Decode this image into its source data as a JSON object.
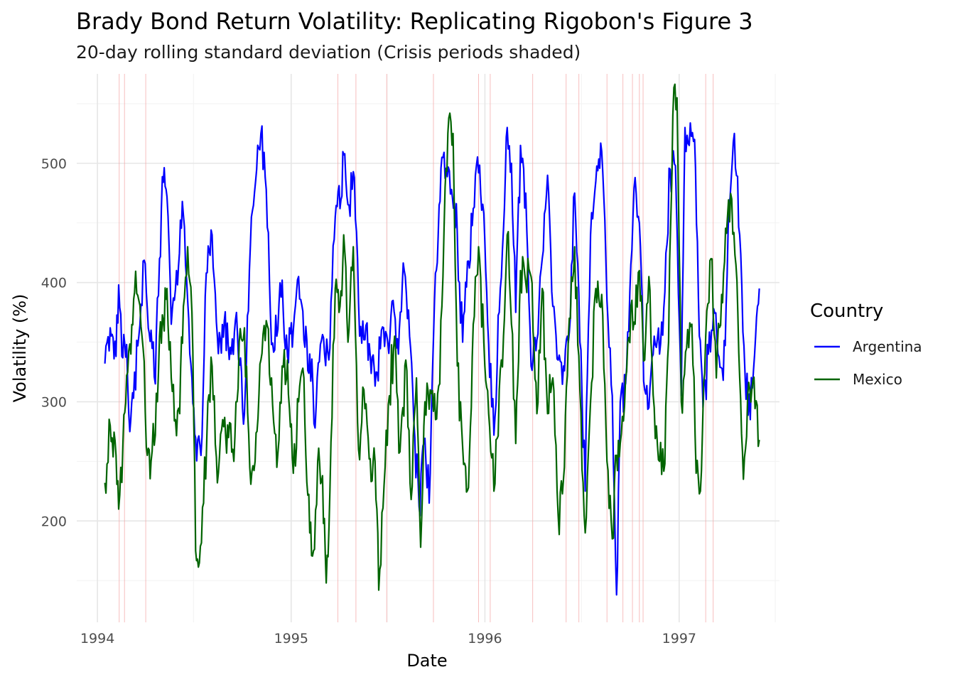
{
  "chart_data": {
    "type": "line",
    "title": "Brady Bond Return Volatility: Replicating Rigobon's Figure 3",
    "subtitle": "20-day rolling standard deviation (Crisis periods shaded)",
    "xlabel": "Date",
    "ylabel": "Volatility (%)",
    "x_range": [
      "1993-11-23",
      "1997-07-09"
    ],
    "y_range": [
      115,
      575
    ],
    "x_ticks": [
      "1994",
      "1995",
      "1996",
      "1997"
    ],
    "y_ticks": [
      200,
      300,
      400,
      500
    ],
    "grid": true,
    "legend": {
      "title": "Country",
      "placement": "right"
    },
    "crisis_color": "#f4a8a8",
    "crisis_dates": [
      "1994-02-11",
      "1994-02-21",
      "1994-04-02",
      "1995-03-30",
      "1995-05-03",
      "1995-06-30",
      "1995-09-26",
      "1995-12-20",
      "1996-01-11",
      "1996-03-31",
      "1996-06-02",
      "1996-06-26",
      "1996-08-18",
      "1996-09-17",
      "1996-10-05",
      "1996-10-18",
      "1996-10-25",
      "1997-02-20",
      "1997-03-06"
    ],
    "series": [
      {
        "name": "Argentina",
        "color": "#0000ff",
        "points": [
          [
            "1994-01-15",
            332
          ],
          [
            "1994-01-25",
            362
          ],
          [
            "1994-02-05",
            338
          ],
          [
            "1994-02-10",
            398
          ],
          [
            "1994-02-16",
            338
          ],
          [
            "1994-02-25",
            348
          ],
          [
            "1994-03-03",
            275
          ],
          [
            "1994-03-10",
            303
          ],
          [
            "1994-03-20",
            355
          ],
          [
            "1994-03-28",
            418
          ],
          [
            "1994-04-05",
            378
          ],
          [
            "1994-04-12",
            360
          ],
          [
            "1994-04-20",
            315
          ],
          [
            "1994-04-28",
            420
          ],
          [
            "1994-05-05",
            484
          ],
          [
            "1994-05-12",
            472
          ],
          [
            "1994-05-20",
            365
          ],
          [
            "1994-05-30",
            410
          ],
          [
            "1994-06-10",
            468
          ],
          [
            "1994-06-20",
            385
          ],
          [
            "1994-06-28",
            320
          ],
          [
            "1994-07-05",
            270
          ],
          [
            "1994-07-15",
            255
          ],
          [
            "1994-07-25",
            408
          ],
          [
            "1994-08-05",
            440
          ],
          [
            "1994-08-15",
            355
          ],
          [
            "1994-08-28",
            368
          ],
          [
            "1994-09-10",
            340
          ],
          [
            "1994-09-22",
            355
          ],
          [
            "1994-10-05",
            290
          ],
          [
            "1994-10-18",
            455
          ],
          [
            "1994-10-28",
            495
          ],
          [
            "1994-11-05",
            525
          ],
          [
            "1994-11-15",
            478
          ],
          [
            "1994-11-25",
            348
          ],
          [
            "1994-12-05",
            355
          ],
          [
            "1994-12-15",
            402
          ],
          [
            "1994-12-25",
            338
          ],
          [
            "1995-01-05",
            360
          ],
          [
            "1995-01-15",
            405
          ],
          [
            "1995-01-25",
            352
          ],
          [
            "1995-02-05",
            340
          ],
          [
            "1995-02-15",
            278
          ],
          [
            "1995-02-25",
            348
          ],
          [
            "1995-03-05",
            340
          ],
          [
            "1995-03-15",
            345
          ],
          [
            "1995-03-25",
            455
          ],
          [
            "1995-04-03",
            462
          ],
          [
            "1995-04-12",
            508
          ],
          [
            "1995-04-20",
            465
          ],
          [
            "1995-04-30",
            488
          ],
          [
            "1995-05-10",
            355
          ],
          [
            "1995-05-20",
            352
          ],
          [
            "1995-05-30",
            338
          ],
          [
            "1995-06-10",
            325
          ],
          [
            "1995-06-20",
            360
          ],
          [
            "1995-07-02",
            350
          ],
          [
            "1995-07-12",
            385
          ],
          [
            "1995-07-22",
            340
          ],
          [
            "1995-08-02",
            410
          ],
          [
            "1995-08-12",
            355
          ],
          [
            "1995-08-22",
            270
          ],
          [
            "1995-08-30",
            212
          ],
          [
            "1995-09-08",
            265
          ],
          [
            "1995-09-18",
            215
          ],
          [
            "1995-09-28",
            385
          ],
          [
            "1995-10-05",
            440
          ],
          [
            "1995-10-12",
            505
          ],
          [
            "1995-10-20",
            495
          ],
          [
            "1995-10-30",
            478
          ],
          [
            "1995-11-10",
            440
          ],
          [
            "1995-11-20",
            350
          ],
          [
            "1995-12-01",
            418
          ],
          [
            "1995-12-10",
            462
          ],
          [
            "1995-12-20",
            492
          ],
          [
            "1995-12-30",
            458
          ],
          [
            "1996-01-08",
            348
          ],
          [
            "1996-01-18",
            272
          ],
          [
            "1996-01-28",
            375
          ],
          [
            "1996-02-05",
            445
          ],
          [
            "1996-02-12",
            530
          ],
          [
            "1996-02-20",
            500
          ],
          [
            "1996-02-28",
            375
          ],
          [
            "1996-03-08",
            515
          ],
          [
            "1996-03-18",
            475
          ],
          [
            "1996-03-28",
            330
          ],
          [
            "1996-04-08",
            352
          ],
          [
            "1996-04-18",
            420
          ],
          [
            "1996-04-28",
            490
          ],
          [
            "1996-05-08",
            380
          ],
          [
            "1996-05-18",
            335
          ],
          [
            "1996-05-28",
            330
          ],
          [
            "1996-06-08",
            358
          ],
          [
            "1996-06-18",
            475
          ],
          [
            "1996-06-28",
            350
          ],
          [
            "1996-07-08",
            225
          ],
          [
            "1996-07-18",
            440
          ],
          [
            "1996-07-28",
            485
          ],
          [
            "1996-08-08",
            510
          ],
          [
            "1996-08-18",
            385
          ],
          [
            "1996-08-28",
            305
          ],
          [
            "1996-09-05",
            138
          ],
          [
            "1996-09-12",
            300
          ],
          [
            "1996-09-22",
            315
          ],
          [
            "1996-10-02",
            415
          ],
          [
            "1996-10-10",
            488
          ],
          [
            "1996-10-18",
            450
          ],
          [
            "1996-10-28",
            310
          ],
          [
            "1996-11-05",
            295
          ],
          [
            "1996-11-15",
            355
          ],
          [
            "1996-11-25",
            340
          ],
          [
            "1996-12-05",
            392
          ],
          [
            "1996-12-15",
            495
          ],
          [
            "1996-12-25",
            498
          ],
          [
            "1997-01-05",
            305
          ],
          [
            "1997-01-12",
            530
          ],
          [
            "1997-01-20",
            515
          ],
          [
            "1997-01-30",
            520
          ],
          [
            "1997-02-08",
            355
          ],
          [
            "1997-02-15",
            295
          ],
          [
            "1997-02-25",
            340
          ],
          [
            "1997-03-07",
            378
          ],
          [
            "1997-03-15",
            340
          ],
          [
            "1997-03-25",
            318
          ],
          [
            "1997-04-05",
            462
          ],
          [
            "1997-04-15",
            525
          ],
          [
            "1997-04-25",
            440
          ],
          [
            "1997-05-05",
            325
          ],
          [
            "1997-05-15",
            285
          ],
          [
            "1997-05-25",
            355
          ],
          [
            "1997-06-01",
            395
          ]
        ]
      },
      {
        "name": "Mexico",
        "color": "#006400",
        "points": [
          [
            "1994-01-15",
            232
          ],
          [
            "1994-01-25",
            280
          ],
          [
            "1994-02-05",
            255
          ],
          [
            "1994-02-10",
            210
          ],
          [
            "1994-02-18",
            265
          ],
          [
            "1994-02-25",
            322
          ],
          [
            "1994-03-05",
            340
          ],
          [
            "1994-03-12",
            392
          ],
          [
            "1994-03-20",
            385
          ],
          [
            "1994-03-28",
            345
          ],
          [
            "1994-04-05",
            255
          ],
          [
            "1994-04-12",
            250
          ],
          [
            "1994-04-20",
            272
          ],
          [
            "1994-04-28",
            355
          ],
          [
            "1994-05-05",
            368
          ],
          [
            "1994-05-12",
            395
          ],
          [
            "1994-05-20",
            320
          ],
          [
            "1994-05-28",
            285
          ],
          [
            "1994-06-05",
            290
          ],
          [
            "1994-06-12",
            380
          ],
          [
            "1994-06-20",
            430
          ],
          [
            "1994-06-28",
            375
          ],
          [
            "1994-07-05",
            175
          ],
          [
            "1994-07-12",
            165
          ],
          [
            "1994-07-20",
            215
          ],
          [
            "1994-07-28",
            300
          ],
          [
            "1994-08-05",
            330
          ],
          [
            "1994-08-15",
            232
          ],
          [
            "1994-08-25",
            285
          ],
          [
            "1994-09-05",
            270
          ],
          [
            "1994-09-15",
            250
          ],
          [
            "1994-09-25",
            350
          ],
          [
            "1994-10-05",
            362
          ],
          [
            "1994-10-15",
            245
          ],
          [
            "1994-10-25",
            250
          ],
          [
            "1994-11-05",
            335
          ],
          [
            "1994-11-15",
            368
          ],
          [
            "1994-11-25",
            320
          ],
          [
            "1994-12-05",
            245
          ],
          [
            "1994-12-15",
            330
          ],
          [
            "1994-12-25",
            335
          ],
          [
            "1995-01-05",
            240
          ],
          [
            "1995-01-15",
            300
          ],
          [
            "1995-01-25",
            320
          ],
          [
            "1995-02-05",
            190
          ],
          [
            "1995-02-12",
            175
          ],
          [
            "1995-02-20",
            250
          ],
          [
            "1995-03-01",
            238
          ],
          [
            "1995-03-08",
            148
          ],
          [
            "1995-03-15",
            225
          ],
          [
            "1995-03-25",
            395
          ],
          [
            "1995-04-03",
            380
          ],
          [
            "1995-04-10",
            440
          ],
          [
            "1995-04-18",
            350
          ],
          [
            "1995-04-28",
            430
          ],
          [
            "1995-05-08",
            260
          ],
          [
            "1995-05-18",
            310
          ],
          [
            "1995-05-28",
            252
          ],
          [
            "1995-06-08",
            250
          ],
          [
            "1995-06-15",
            142
          ],
          [
            "1995-06-25",
            230
          ],
          [
            "1995-07-05",
            305
          ],
          [
            "1995-07-15",
            355
          ],
          [
            "1995-07-25",
            258
          ],
          [
            "1995-08-05",
            335
          ],
          [
            "1995-08-15",
            218
          ],
          [
            "1995-08-25",
            320
          ],
          [
            "1995-09-02",
            178
          ],
          [
            "1995-09-10",
            300
          ],
          [
            "1995-09-20",
            310
          ],
          [
            "1995-09-30",
            285
          ],
          [
            "1995-10-08",
            315
          ],
          [
            "1995-10-18",
            480
          ],
          [
            "1995-10-25",
            538
          ],
          [
            "1995-11-02",
            525
          ],
          [
            "1995-11-10",
            330
          ],
          [
            "1995-11-20",
            262
          ],
          [
            "1995-12-01",
            228
          ],
          [
            "1995-12-10",
            365
          ],
          [
            "1995-12-20",
            430
          ],
          [
            "1995-12-30",
            350
          ],
          [
            "1996-01-08",
            290
          ],
          [
            "1996-01-18",
            225
          ],
          [
            "1996-01-28",
            310
          ],
          [
            "1996-02-05",
            355
          ],
          [
            "1996-02-12",
            440
          ],
          [
            "1996-02-20",
            365
          ],
          [
            "1996-02-28",
            265
          ],
          [
            "1996-03-08",
            410
          ],
          [
            "1996-03-18",
            400
          ],
          [
            "1996-03-28",
            405
          ],
          [
            "1996-04-08",
            290
          ],
          [
            "1996-04-18",
            395
          ],
          [
            "1996-04-28",
            290
          ],
          [
            "1996-05-08",
            320
          ],
          [
            "1996-05-18",
            205
          ],
          [
            "1996-05-28",
            235
          ],
          [
            "1996-06-08",
            370
          ],
          [
            "1996-06-18",
            430
          ],
          [
            "1996-06-28",
            310
          ],
          [
            "1996-07-08",
            190
          ],
          [
            "1996-07-18",
            300
          ],
          [
            "1996-07-28",
            395
          ],
          [
            "1996-08-08",
            390
          ],
          [
            "1996-08-18",
            250
          ],
          [
            "1996-08-28",
            185
          ],
          [
            "1996-09-05",
            255
          ],
          [
            "1996-09-12",
            265
          ],
          [
            "1996-09-22",
            320
          ],
          [
            "1996-10-02",
            380
          ],
          [
            "1996-10-10",
            365
          ],
          [
            "1996-10-18",
            410
          ],
          [
            "1996-10-28",
            335
          ],
          [
            "1996-11-05",
            405
          ],
          [
            "1996-11-15",
            295
          ],
          [
            "1996-11-25",
            250
          ],
          [
            "1996-12-05",
            248
          ],
          [
            "1996-12-12",
            350
          ],
          [
            "1996-12-20",
            540
          ],
          [
            "1996-12-28",
            555
          ],
          [
            "1997-01-05",
            300
          ],
          [
            "1997-01-15",
            345
          ],
          [
            "1997-01-25",
            365
          ],
          [
            "1997-02-02",
            240
          ],
          [
            "1997-02-10",
            225
          ],
          [
            "1997-02-20",
            355
          ],
          [
            "1997-03-02",
            420
          ],
          [
            "1997-03-12",
            320
          ],
          [
            "1997-03-22",
            390
          ],
          [
            "1997-04-02",
            455
          ],
          [
            "1997-04-10",
            470
          ],
          [
            "1997-04-18",
            415
          ],
          [
            "1997-04-25",
            320
          ],
          [
            "1997-05-02",
            235
          ],
          [
            "1997-05-10",
            305
          ],
          [
            "1997-05-20",
            318
          ],
          [
            "1997-06-01",
            268
          ]
        ]
      }
    ]
  }
}
